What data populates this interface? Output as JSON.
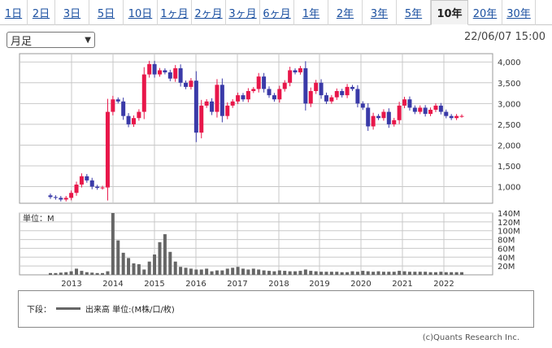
{
  "tabs": [
    {
      "label": "1日",
      "active": false
    },
    {
      "label": "2日",
      "active": false
    },
    {
      "label": "3日",
      "active": false
    },
    {
      "label": "5日",
      "active": false
    },
    {
      "label": "10日",
      "active": false
    },
    {
      "label": "1ヶ月",
      "active": false
    },
    {
      "label": "2ヶ月",
      "active": false
    },
    {
      "label": "3ヶ月",
      "active": false
    },
    {
      "label": "6ヶ月",
      "active": false
    },
    {
      "label": "1年",
      "active": false
    },
    {
      "label": "2年",
      "active": false
    },
    {
      "label": "3年",
      "active": false
    },
    {
      "label": "5年",
      "active": false
    },
    {
      "label": "10年",
      "active": true
    },
    {
      "label": "20年",
      "active": false
    },
    {
      "label": "30年",
      "active": false
    }
  ],
  "period_select": {
    "value": "月足"
  },
  "timestamp": "22/06/07 15:00",
  "legend": {
    "prefix": "下段：",
    "label": "出来高 単位:(M株/口/枚)"
  },
  "copyright": "(c)Quants Research Inc.",
  "colors": {
    "up": "#e8174a",
    "down": "#3a3aa8",
    "volume": "#666666",
    "grid": "#c8c8c8"
  },
  "chart_data": [
    {
      "type": "candlestick",
      "x_ticks": [
        "2013",
        "2014",
        "2015",
        "2016",
        "2017",
        "2018",
        "2019",
        "2020",
        "2021",
        "2022"
      ],
      "y_ticks": [
        "1,000",
        "1,500",
        "2,000",
        "2,500",
        "3,000",
        "3,500",
        "4,000"
      ],
      "ylim": [
        600,
        4200
      ],
      "grid": true,
      "series": [
        {
          "points": [
            [
              790,
              750
            ],
            [
              750,
              730
            ],
            [
              730,
              690
            ],
            [
              690,
              730
            ],
            [
              730,
              850
            ],
            [
              850,
              1050
            ],
            [
              1050,
              1250
            ],
            [
              1250,
              1150
            ],
            [
              1150,
              1000
            ],
            [
              1000,
              970
            ],
            [
              970,
              980
            ],
            [
              980,
              2800
            ],
            [
              2800,
              3100
            ],
            [
              3100,
              3050
            ],
            [
              3050,
              2700
            ],
            [
              2700,
              2500
            ],
            [
              2500,
              2650
            ],
            [
              2650,
              2800
            ],
            [
              2800,
              3700
            ],
            [
              3700,
              3950
            ],
            [
              3950,
              3700
            ],
            [
              3700,
              3800
            ],
            [
              3800,
              3750
            ],
            [
              3750,
              3600
            ],
            [
              3600,
              3850
            ],
            [
              3850,
              3500
            ],
            [
              3500,
              3400
            ],
            [
              3400,
              3550
            ],
            [
              3550,
              2300
            ],
            [
              2300,
              2950
            ],
            [
              2950,
              3050
            ],
            [
              3050,
              2800
            ],
            [
              2800,
              3450
            ],
            [
              3450,
              2700
            ],
            [
              2700,
              2950
            ],
            [
              2950,
              3050
            ],
            [
              3050,
              3200
            ],
            [
              3200,
              3100
            ],
            [
              3100,
              3300
            ],
            [
              3300,
              3350
            ],
            [
              3350,
              3650
            ],
            [
              3650,
              3350
            ],
            [
              3350,
              3200
            ],
            [
              3200,
              3100
            ],
            [
              3100,
              3350
            ],
            [
              3350,
              3500
            ],
            [
              3500,
              3800
            ],
            [
              3800,
              3750
            ],
            [
              3750,
              3850
            ],
            [
              3850,
              3000
            ],
            [
              3000,
              3300
            ],
            [
              3300,
              3500
            ],
            [
              3500,
              3200
            ],
            [
              3200,
              3050
            ],
            [
              3050,
              3150
            ],
            [
              3150,
              3300
            ],
            [
              3300,
              3200
            ],
            [
              3200,
              3400
            ],
            [
              3400,
              3350
            ],
            [
              3350,
              3000
            ],
            [
              3000,
              2900
            ],
            [
              2900,
              2450
            ],
            [
              2450,
              2700
            ],
            [
              2700,
              2650
            ],
            [
              2650,
              2800
            ],
            [
              2800,
              2500
            ],
            [
              2500,
              2600
            ],
            [
              2600,
              2950
            ],
            [
              2950,
              3100
            ],
            [
              3100,
              2900
            ],
            [
              2900,
              2800
            ],
            [
              2800,
              2900
            ],
            [
              2900,
              2750
            ],
            [
              2750,
              2850
            ],
            [
              2850,
              2950
            ],
            [
              2950,
              2800
            ],
            [
              2800,
              2700
            ],
            [
              2700,
              2650
            ],
            [
              2650,
              2700
            ],
            [
              2700,
              2700
            ]
          ]
        }
      ]
    },
    {
      "type": "bar",
      "title": "単位：M",
      "y_ticks": [
        "20M",
        "40M",
        "60M",
        "80M",
        "100M",
        "120M",
        "140M"
      ],
      "ylim": [
        0,
        140
      ],
      "grid": true,
      "values": [
        4,
        4,
        5,
        6,
        8,
        14,
        9,
        6,
        5,
        4,
        4,
        8,
        140,
        78,
        50,
        38,
        26,
        24,
        12,
        30,
        46,
        74,
        92,
        52,
        30,
        18,
        16,
        14,
        12,
        12,
        14,
        8,
        10,
        10,
        14,
        16,
        18,
        14,
        12,
        14,
        12,
        10,
        9,
        8,
        10,
        9,
        8,
        8,
        9,
        12,
        9,
        8,
        7,
        7,
        7,
        7,
        6,
        6,
        8,
        7,
        9,
        8,
        7,
        8,
        7,
        7,
        7,
        9,
        8,
        7,
        7,
        7,
        7,
        6,
        6,
        7,
        6,
        6,
        6,
        6
      ],
      "x_ticks": [
        "2013",
        "2014",
        "2015",
        "2016",
        "2017",
        "2018",
        "2019",
        "2020",
        "2021",
        "2022"
      ]
    }
  ]
}
